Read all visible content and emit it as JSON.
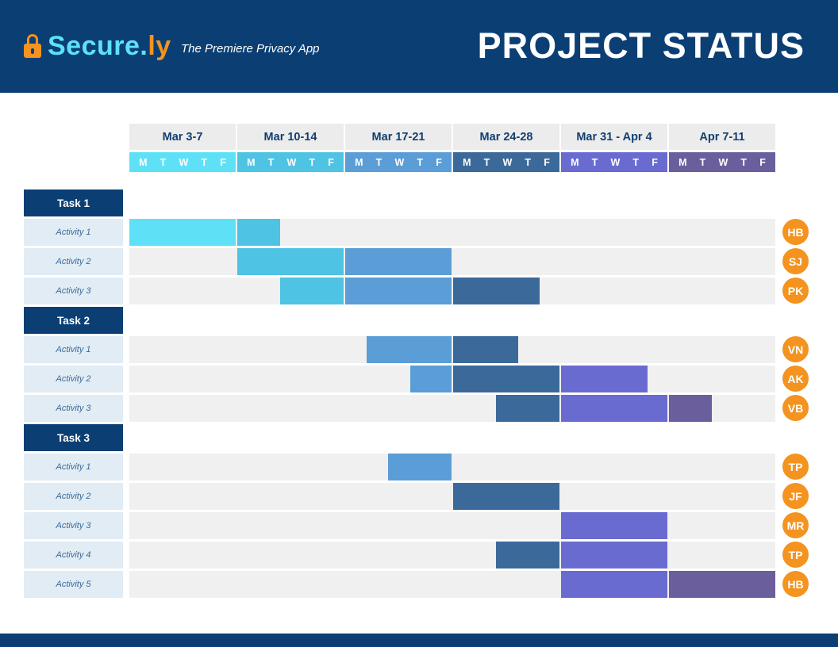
{
  "header": {
    "brand_main": "Secure.",
    "brand_suffix": "ly",
    "tagline": "The Premiere Privacy App",
    "title": "PROJECT STATUS",
    "logo_icon": "lock-icon",
    "background": "#0b3f74",
    "brand_color": "#5ee1f7",
    "accent": "#f4931f"
  },
  "chart_data": {
    "type": "gantt",
    "weeks": [
      {
        "label": "Mar 3-7",
        "color": "#5ee1f7"
      },
      {
        "label": "Mar 10-14",
        "color": "#4ec3e3"
      },
      {
        "label": "Mar 17-21",
        "color": "#5b9dd6"
      },
      {
        "label": "Mar 24-28",
        "color": "#3b6a9a"
      },
      {
        "label": "Mar 31 - Apr 4",
        "color": "#6a6bd1"
      },
      {
        "label": "Apr 7-11",
        "color": "#6a5f9c"
      }
    ],
    "days": [
      "M",
      "T",
      "W",
      "T",
      "F"
    ],
    "tasks": [
      {
        "label": "Task 1",
        "activities": [
          {
            "label": "Activity 1",
            "start_day": 0,
            "end_day": 7,
            "owner": "HB"
          },
          {
            "label": "Activity 2",
            "start_day": 5,
            "end_day": 15,
            "owner": "SJ"
          },
          {
            "label": "Activity 3",
            "start_day": 7,
            "end_day": 19,
            "owner": "PK"
          }
        ]
      },
      {
        "label": "Task 2",
        "activities": [
          {
            "label": "Activity 1",
            "start_day": 11,
            "end_day": 18,
            "owner": "VN"
          },
          {
            "label": "Activity 2",
            "start_day": 13,
            "end_day": 24,
            "owner": "AK"
          },
          {
            "label": "Activity 3",
            "start_day": 17,
            "end_day": 27,
            "owner": "VB"
          }
        ]
      },
      {
        "label": "Task 3",
        "activities": [
          {
            "label": "Activity 1",
            "start_day": 12,
            "end_day": 15,
            "owner": "TP"
          },
          {
            "label": "Activity 2",
            "start_day": 15,
            "end_day": 20,
            "owner": "JF"
          },
          {
            "label": "Activity 3",
            "start_day": 20,
            "end_day": 25,
            "owner": "MR"
          },
          {
            "label": "Activity 4",
            "start_day": 17,
            "end_day": 25,
            "owner": "TP"
          },
          {
            "label": "Activity 5",
            "start_day": 20,
            "end_day": 30,
            "owner": "HB"
          }
        ]
      }
    ]
  }
}
